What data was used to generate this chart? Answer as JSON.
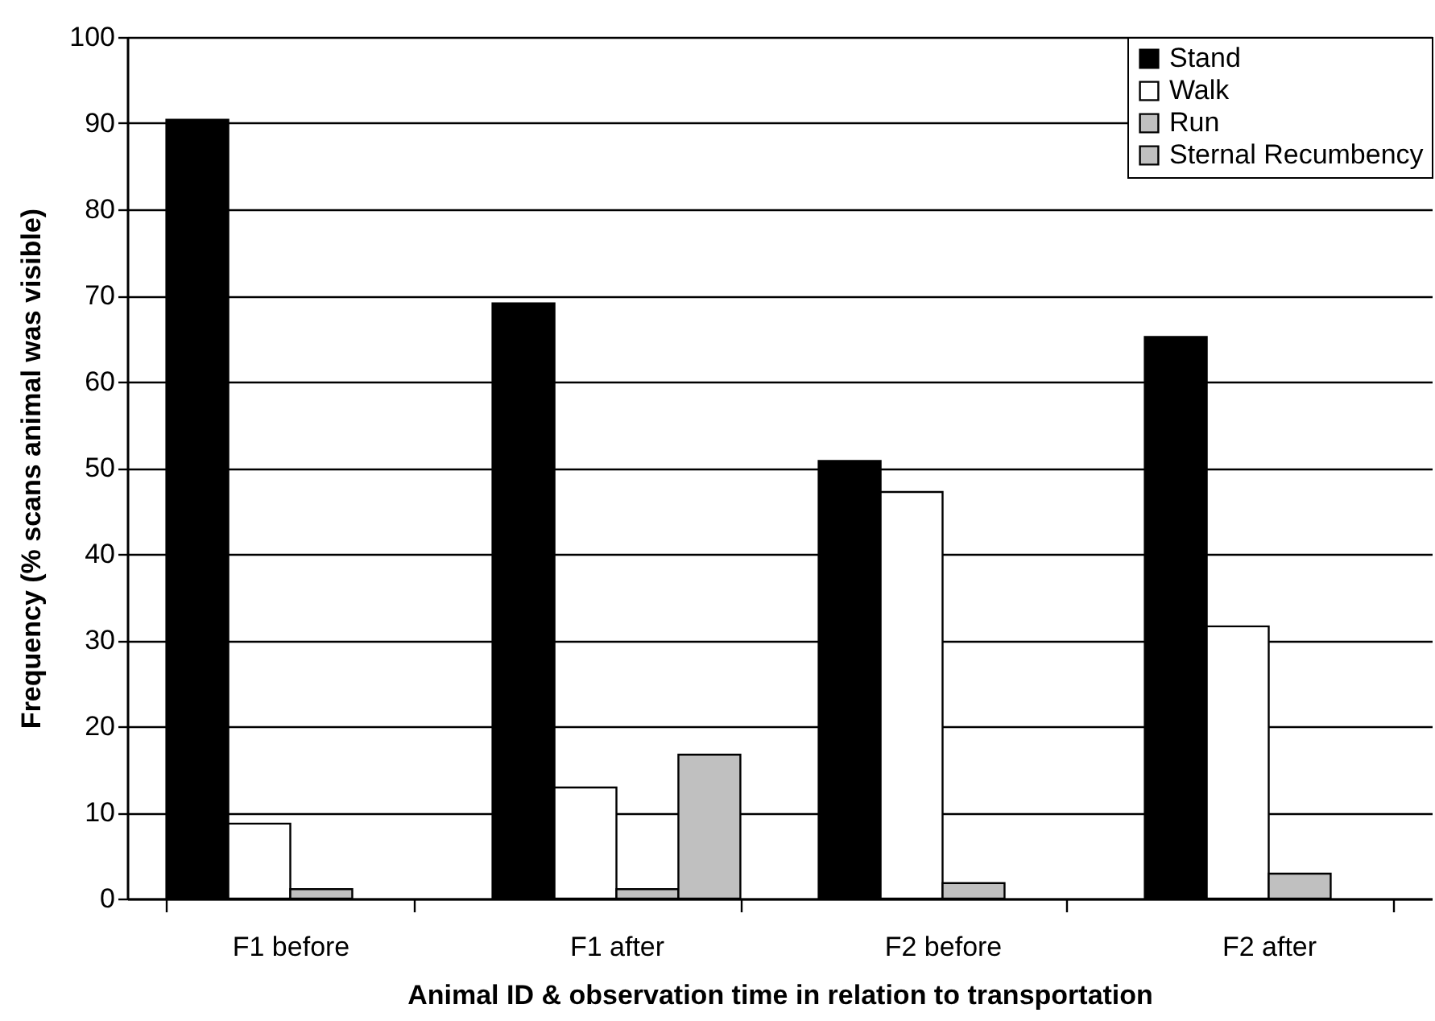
{
  "chart_data": {
    "type": "bar",
    "xlabel": "Animal ID & observation time in relation to transportation",
    "ylabel": "Frequency (% scans animal was visible)",
    "categories": [
      "F1 before",
      "F1 after",
      "F2 before",
      "F2 after"
    ],
    "series": [
      {
        "name": "Stand",
        "color": "#000000",
        "values": [
          90.4,
          69.1,
          50.8,
          65.2
        ]
      },
      {
        "name": "Walk",
        "color": "#ffffff",
        "values": [
          8.7,
          12.9,
          47.2,
          31.6
        ]
      },
      {
        "name": "Run",
        "color": "#c0c0c0",
        "values": [
          1.1,
          1.1,
          1.8,
          2.9
        ]
      },
      {
        "name": "Sternal Recumbency",
        "color": "#c0c0c0",
        "values": [
          null,
          16.7,
          null,
          null
        ]
      }
    ],
    "ylim": [
      0,
      100
    ],
    "yticks": [
      0,
      10,
      20,
      30,
      40,
      50,
      60,
      70,
      80,
      90,
      100
    ],
    "grid": "y",
    "legend": "top right"
  }
}
